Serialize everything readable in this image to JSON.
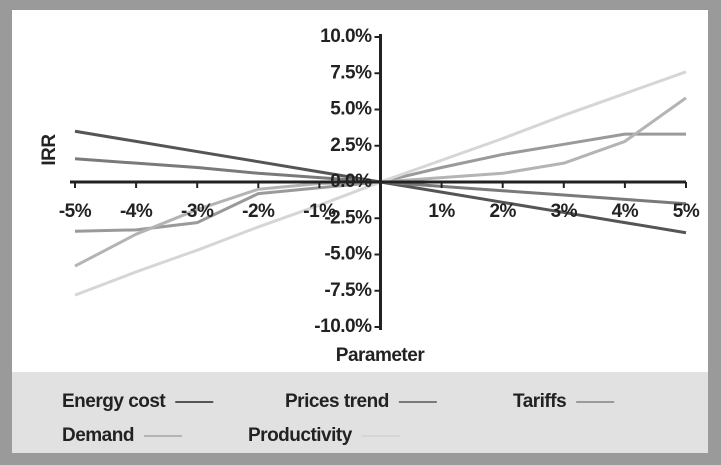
{
  "chart_data": {
    "type": "line",
    "x_label": "Parameter",
    "y_label": "IRR",
    "x": [
      -5,
      -4,
      -3,
      -2,
      -1,
      0,
      1,
      2,
      3,
      4,
      5
    ],
    "xlim": [
      -5,
      5
    ],
    "xticks": [
      {
        "value": -5,
        "label": "-5%"
      },
      {
        "value": -4,
        "label": "-4%"
      },
      {
        "value": -3,
        "label": "-3%"
      },
      {
        "value": -2,
        "label": "-2%"
      },
      {
        "value": -1,
        "label": "-1%"
      },
      {
        "value": 1,
        "label": "1%"
      },
      {
        "value": 2,
        "label": "2%"
      },
      {
        "value": 3,
        "label": "3%"
      },
      {
        "value": 4,
        "label": "4%"
      },
      {
        "value": 5,
        "label": "5%"
      }
    ],
    "ylim": [
      -10,
      10
    ],
    "yticks": [
      {
        "value": 10,
        "label": "10.0%"
      },
      {
        "value": 7.5,
        "label": "7.5%"
      },
      {
        "value": 5,
        "label": "5.0%"
      },
      {
        "value": 2.5,
        "label": "2.5%"
      },
      {
        "value": 0,
        "label": "0.0%"
      },
      {
        "value": -2.5,
        "label": "-2.5%"
      },
      {
        "value": -5,
        "label": "-5.0%"
      },
      {
        "value": -7.5,
        "label": "-7.5%"
      },
      {
        "value": -10,
        "label": "-10.0%"
      }
    ],
    "series": [
      {
        "name": "Energy cost",
        "color": "#555555",
        "values": [
          3.5,
          2.8,
          2.1,
          1.4,
          0.7,
          0,
          -0.7,
          -1.4,
          -2.1,
          -2.8,
          -3.5
        ]
      },
      {
        "name": "Prices trend",
        "color": "#7a7a7a",
        "values": [
          1.6,
          1.3,
          1.0,
          0.6,
          0.3,
          0,
          -0.3,
          -0.6,
          -0.9,
          -1.2,
          -1.5
        ]
      },
      {
        "name": "Tariffs",
        "color": "#9a9a9a",
        "values": [
          -3.4,
          -3.3,
          -2.8,
          -0.8,
          -0.4,
          0,
          1.0,
          1.9,
          2.6,
          3.3,
          3.3
        ]
      },
      {
        "name": "Demand",
        "color": "#b4b4b4",
        "values": [
          -5.8,
          -3.6,
          -1.9,
          -0.5,
          -0.1,
          0,
          0.3,
          0.6,
          1.3,
          2.8,
          5.8
        ]
      },
      {
        "name": "Productivity",
        "color": "#d6d6d6",
        "values": [
          -7.8,
          -6.2,
          -4.7,
          -3.1,
          -1.6,
          0,
          1.5,
          3.0,
          4.6,
          6.1,
          7.6
        ]
      }
    ]
  }
}
